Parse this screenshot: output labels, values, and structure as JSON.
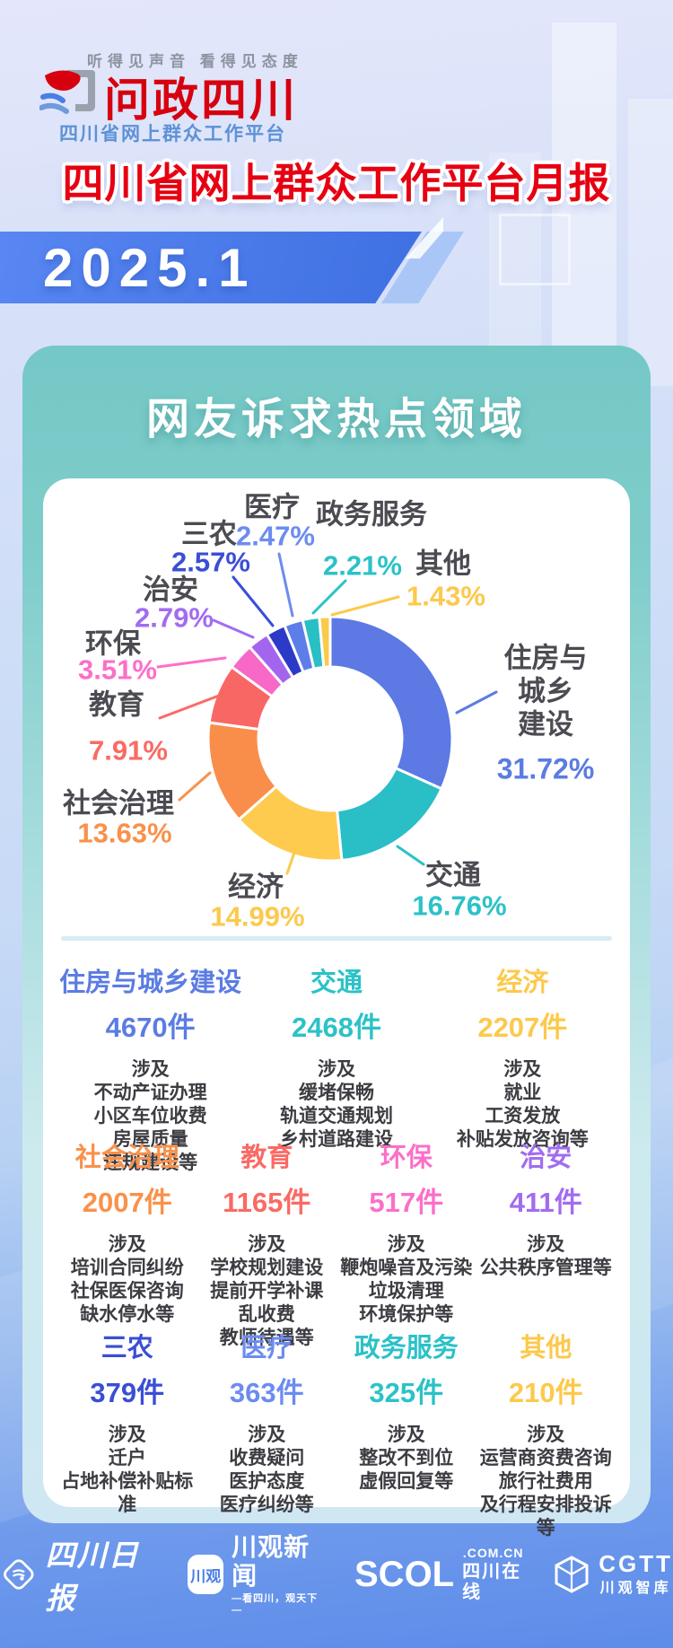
{
  "header": {
    "tagline": "听得见声音  看得见态度",
    "logo_text": "问政四川",
    "subtitle": "四川省网上群众工作平台",
    "title": "四川省网上群众工作平台月报",
    "period": "2025.1"
  },
  "section": {
    "title": "网友诉求热点领域"
  },
  "colors": {
    "title_red": "#e60012",
    "logo_red": "#d7000f",
    "banner_blue": "#4b7ced",
    "card_teal": "#74c8c5",
    "label_gray": "#4b4b52"
  },
  "chart_data": {
    "type": "pie",
    "subtype": "donut",
    "title": "网友诉求热点领域",
    "unit": "%",
    "start_angle": "12-o-clock, clockwise",
    "categories": [
      "住房与城乡建设",
      "交通",
      "经济",
      "社会治理",
      "教育",
      "环保",
      "治安",
      "三农",
      "医疗",
      "政务服务",
      "其他"
    ],
    "values": [
      31.72,
      16.76,
      14.99,
      13.63,
      7.91,
      3.51,
      2.79,
      2.57,
      2.47,
      2.21,
      1.43
    ],
    "slice_colors": [
      "#5c79e4",
      "#2abec6",
      "#fecb4e",
      "#f98e4a",
      "#f96765",
      "#f768c7",
      "#a465ee",
      "#2c3ac7",
      "#5d7de9",
      "#28bfc5",
      "#f9cb4b"
    ],
    "label_colors": [
      "#5b7ce3",
      "#2bc2c8",
      "#fcc94c",
      "#f9914b",
      "#fa6a64",
      "#fb6fc9",
      "#a26cf0",
      "#3a4ed6",
      "#6c8cf0",
      "#2bc2c8",
      "#fcc94c"
    ],
    "legend_position": "around-chart"
  },
  "details": [
    {
      "name": "住房与城乡建设",
      "count": "4670件",
      "color": "#5b7ce3",
      "items": [
        "涉及",
        "不动产证办理",
        "小区车位收费",
        "房屋质量",
        "违规建设等"
      ]
    },
    {
      "name": "交通",
      "count": "2468件",
      "color": "#2bc2c8",
      "items": [
        "涉及",
        "缓堵保畅",
        "轨道交通规划",
        "乡村道路建设"
      ]
    },
    {
      "name": "经济",
      "count": "2207件",
      "color": "#fcc94c",
      "items": [
        "涉及",
        "就业",
        "工资发放",
        "补贴发放咨询等"
      ]
    },
    {
      "name": "社会治理",
      "count": "2007件",
      "color": "#f9914b",
      "items": [
        "涉及",
        "培训合同纠纷",
        "社保医保咨询",
        "缺水停水等"
      ]
    },
    {
      "name": "教育",
      "count": "1165件",
      "color": "#fa6a64",
      "items": [
        "涉及",
        "学校规划建设",
        "提前开学补课",
        "乱收费",
        "教师待遇等"
      ]
    },
    {
      "name": "环保",
      "count": "517件",
      "color": "#fb6fc9",
      "items": [
        "涉及",
        "鞭炮噪音及污染",
        "垃圾清理",
        "环境保护等"
      ]
    },
    {
      "name": "治安",
      "count": "411件",
      "color": "#a26cf0",
      "items": [
        "涉及",
        "公共秩序管理等"
      ]
    },
    {
      "name": "三农",
      "count": "379件",
      "color": "#3a4ed6",
      "items": [
        "涉及",
        "迁户",
        "占地补偿补贴标准"
      ]
    },
    {
      "name": "医疗",
      "count": "363件",
      "color": "#6c8cf0",
      "items": [
        "涉及",
        "收费疑问",
        "医护态度",
        "医疗纠纷等"
      ]
    },
    {
      "name": "政务服务",
      "count": "325件",
      "color": "#2bc2c8",
      "items": [
        "涉及",
        "整改不到位",
        "虚假回复等"
      ]
    },
    {
      "name": "其他",
      "count": "210件",
      "color": "#fcc94c",
      "items": [
        "涉及",
        "运营商资费咨询",
        "旅行社费用",
        "及行程安排投诉等"
      ]
    }
  ],
  "footer": {
    "logos": [
      {
        "name": "四川日报",
        "icon": "sichuan-daily-diamond-icon"
      },
      {
        "badge": "川观",
        "name": "川观新闻",
        "tagline": "—看四川，观天下—",
        "icon": "chuanguan-app-icon"
      },
      {
        "name": "SCOL",
        "suffix": ".COM.CN",
        "sub": "四川在线",
        "icon": "scol-wordmark"
      },
      {
        "name": "CGTT",
        "sub": "川观智库",
        "icon": "cgtt-cube-icon"
      }
    ]
  }
}
